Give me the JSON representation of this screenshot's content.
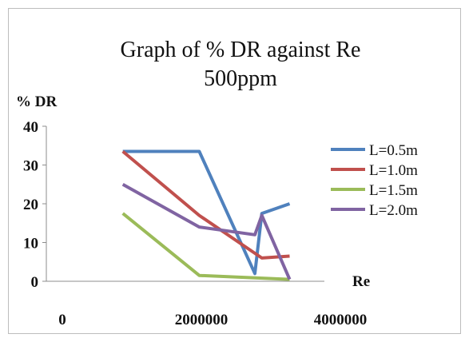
{
  "chart_data": {
    "type": "line",
    "title": "Graph of % DR against Re",
    "subtitle": "500ppm",
    "xlabel": "Re",
    "ylabel": "% DR",
    "xlim": [
      0,
      4000000
    ],
    "ylim": [
      0,
      40
    ],
    "x_ticks": [
      "0",
      "2000000",
      "4000000"
    ],
    "y_ticks": [
      "0",
      "10",
      "20",
      "30",
      "40"
    ],
    "grid": false,
    "legend_position": "right",
    "series": [
      {
        "name": "L=0.5m",
        "color": "#4f81bd",
        "points": [
          [
            1100000,
            33.5
          ],
          [
            2200000,
            33.5
          ],
          [
            3000000,
            2
          ],
          [
            3100000,
            17.5
          ],
          [
            3500000,
            20
          ]
        ]
      },
      {
        "name": "L=1.0m",
        "color": "#c0504d",
        "points": [
          [
            1100000,
            33.5
          ],
          [
            2200000,
            17
          ],
          [
            3100000,
            6
          ],
          [
            3500000,
            6.5
          ]
        ]
      },
      {
        "name": "L=1.5m",
        "color": "#9bbb59",
        "points": [
          [
            1100000,
            17.5
          ],
          [
            2200000,
            1.5
          ],
          [
            3500000,
            0.5
          ]
        ]
      },
      {
        "name": "L=2.0m",
        "color": "#8064a2",
        "points": [
          [
            1100000,
            25
          ],
          [
            2200000,
            14
          ],
          [
            3000000,
            12
          ],
          [
            3100000,
            17
          ],
          [
            3500000,
            0.5
          ]
        ]
      }
    ]
  }
}
